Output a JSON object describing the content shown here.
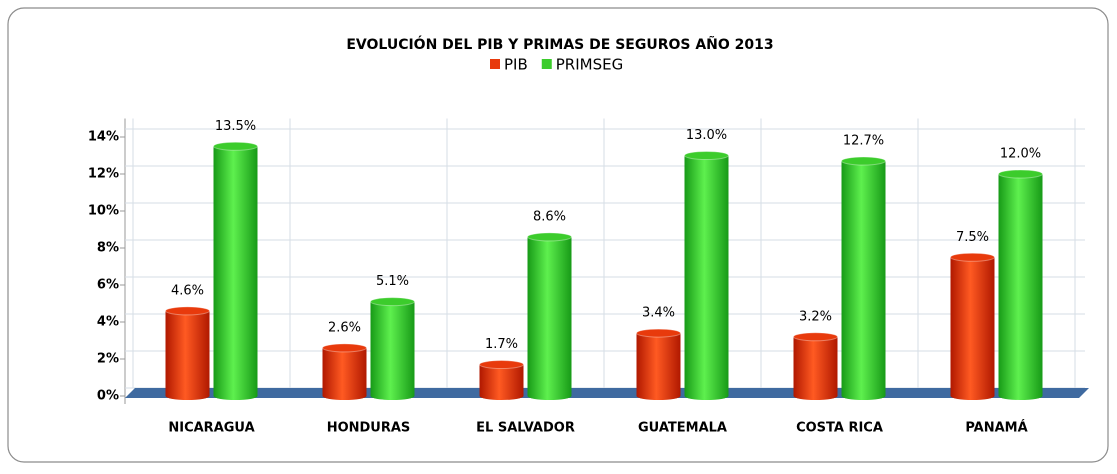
{
  "chart_data": {
    "type": "bar",
    "title": "EVOLUCIÓN DEL PIB Y PRIMAS DE SEGUROS AÑO 2013",
    "categories": [
      "NICARAGUA",
      "HONDURAS",
      "EL SALVADOR",
      "GUATEMALA",
      "COSTA RICA",
      "PANAMÁ"
    ],
    "series": [
      {
        "name": "PIB",
        "color": "#e83a0c",
        "values": [
          4.6,
          2.6,
          1.7,
          3.4,
          3.2,
          7.5
        ],
        "value_labels": [
          "4.6%",
          "2.6%",
          "1.7%",
          "3.4%",
          "3.2%",
          "7.5%"
        ]
      },
      {
        "name": "PRIMSEG",
        "color": "#3ccc2c",
        "values": [
          13.5,
          5.1,
          8.6,
          13.0,
          12.7,
          12.0
        ],
        "value_labels": [
          "13.5%",
          "5.1%",
          "8.6%",
          "13.0%",
          "12.7%",
          "12.0%"
        ]
      }
    ],
    "ylim": [
      0,
      15
    ],
    "yticks": [
      {
        "value": 0,
        "label": "0%"
      },
      {
        "value": 2,
        "label": "2%"
      },
      {
        "value": 4,
        "label": "4%"
      },
      {
        "value": 6,
        "label": "6%"
      },
      {
        "value": 8,
        "label": "8%"
      },
      {
        "value": 10,
        "label": "10%"
      },
      {
        "value": 12,
        "label": "12%"
      },
      {
        "value": 14,
        "label": "14%"
      }
    ],
    "grid": true
  }
}
